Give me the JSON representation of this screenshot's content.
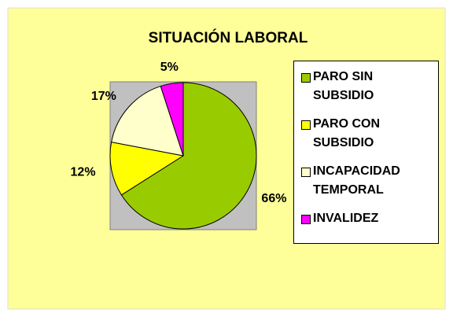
{
  "chart_data": {
    "type": "pie",
    "title": "SITUACIÓN LABORAL",
    "categories": [
      "PARO SIN SUBSIDIO",
      "PARO CON SUBSIDIO",
      "INCAPACIDAD TEMPORAL",
      "INVALIDEZ"
    ],
    "values": [
      66,
      12,
      17,
      5
    ],
    "value_labels": [
      "66%",
      "12%",
      "17%",
      "5%"
    ],
    "colors": [
      "#99CC00",
      "#FFFF00",
      "#FFFFCC",
      "#FF00FF"
    ],
    "legend": "right"
  }
}
